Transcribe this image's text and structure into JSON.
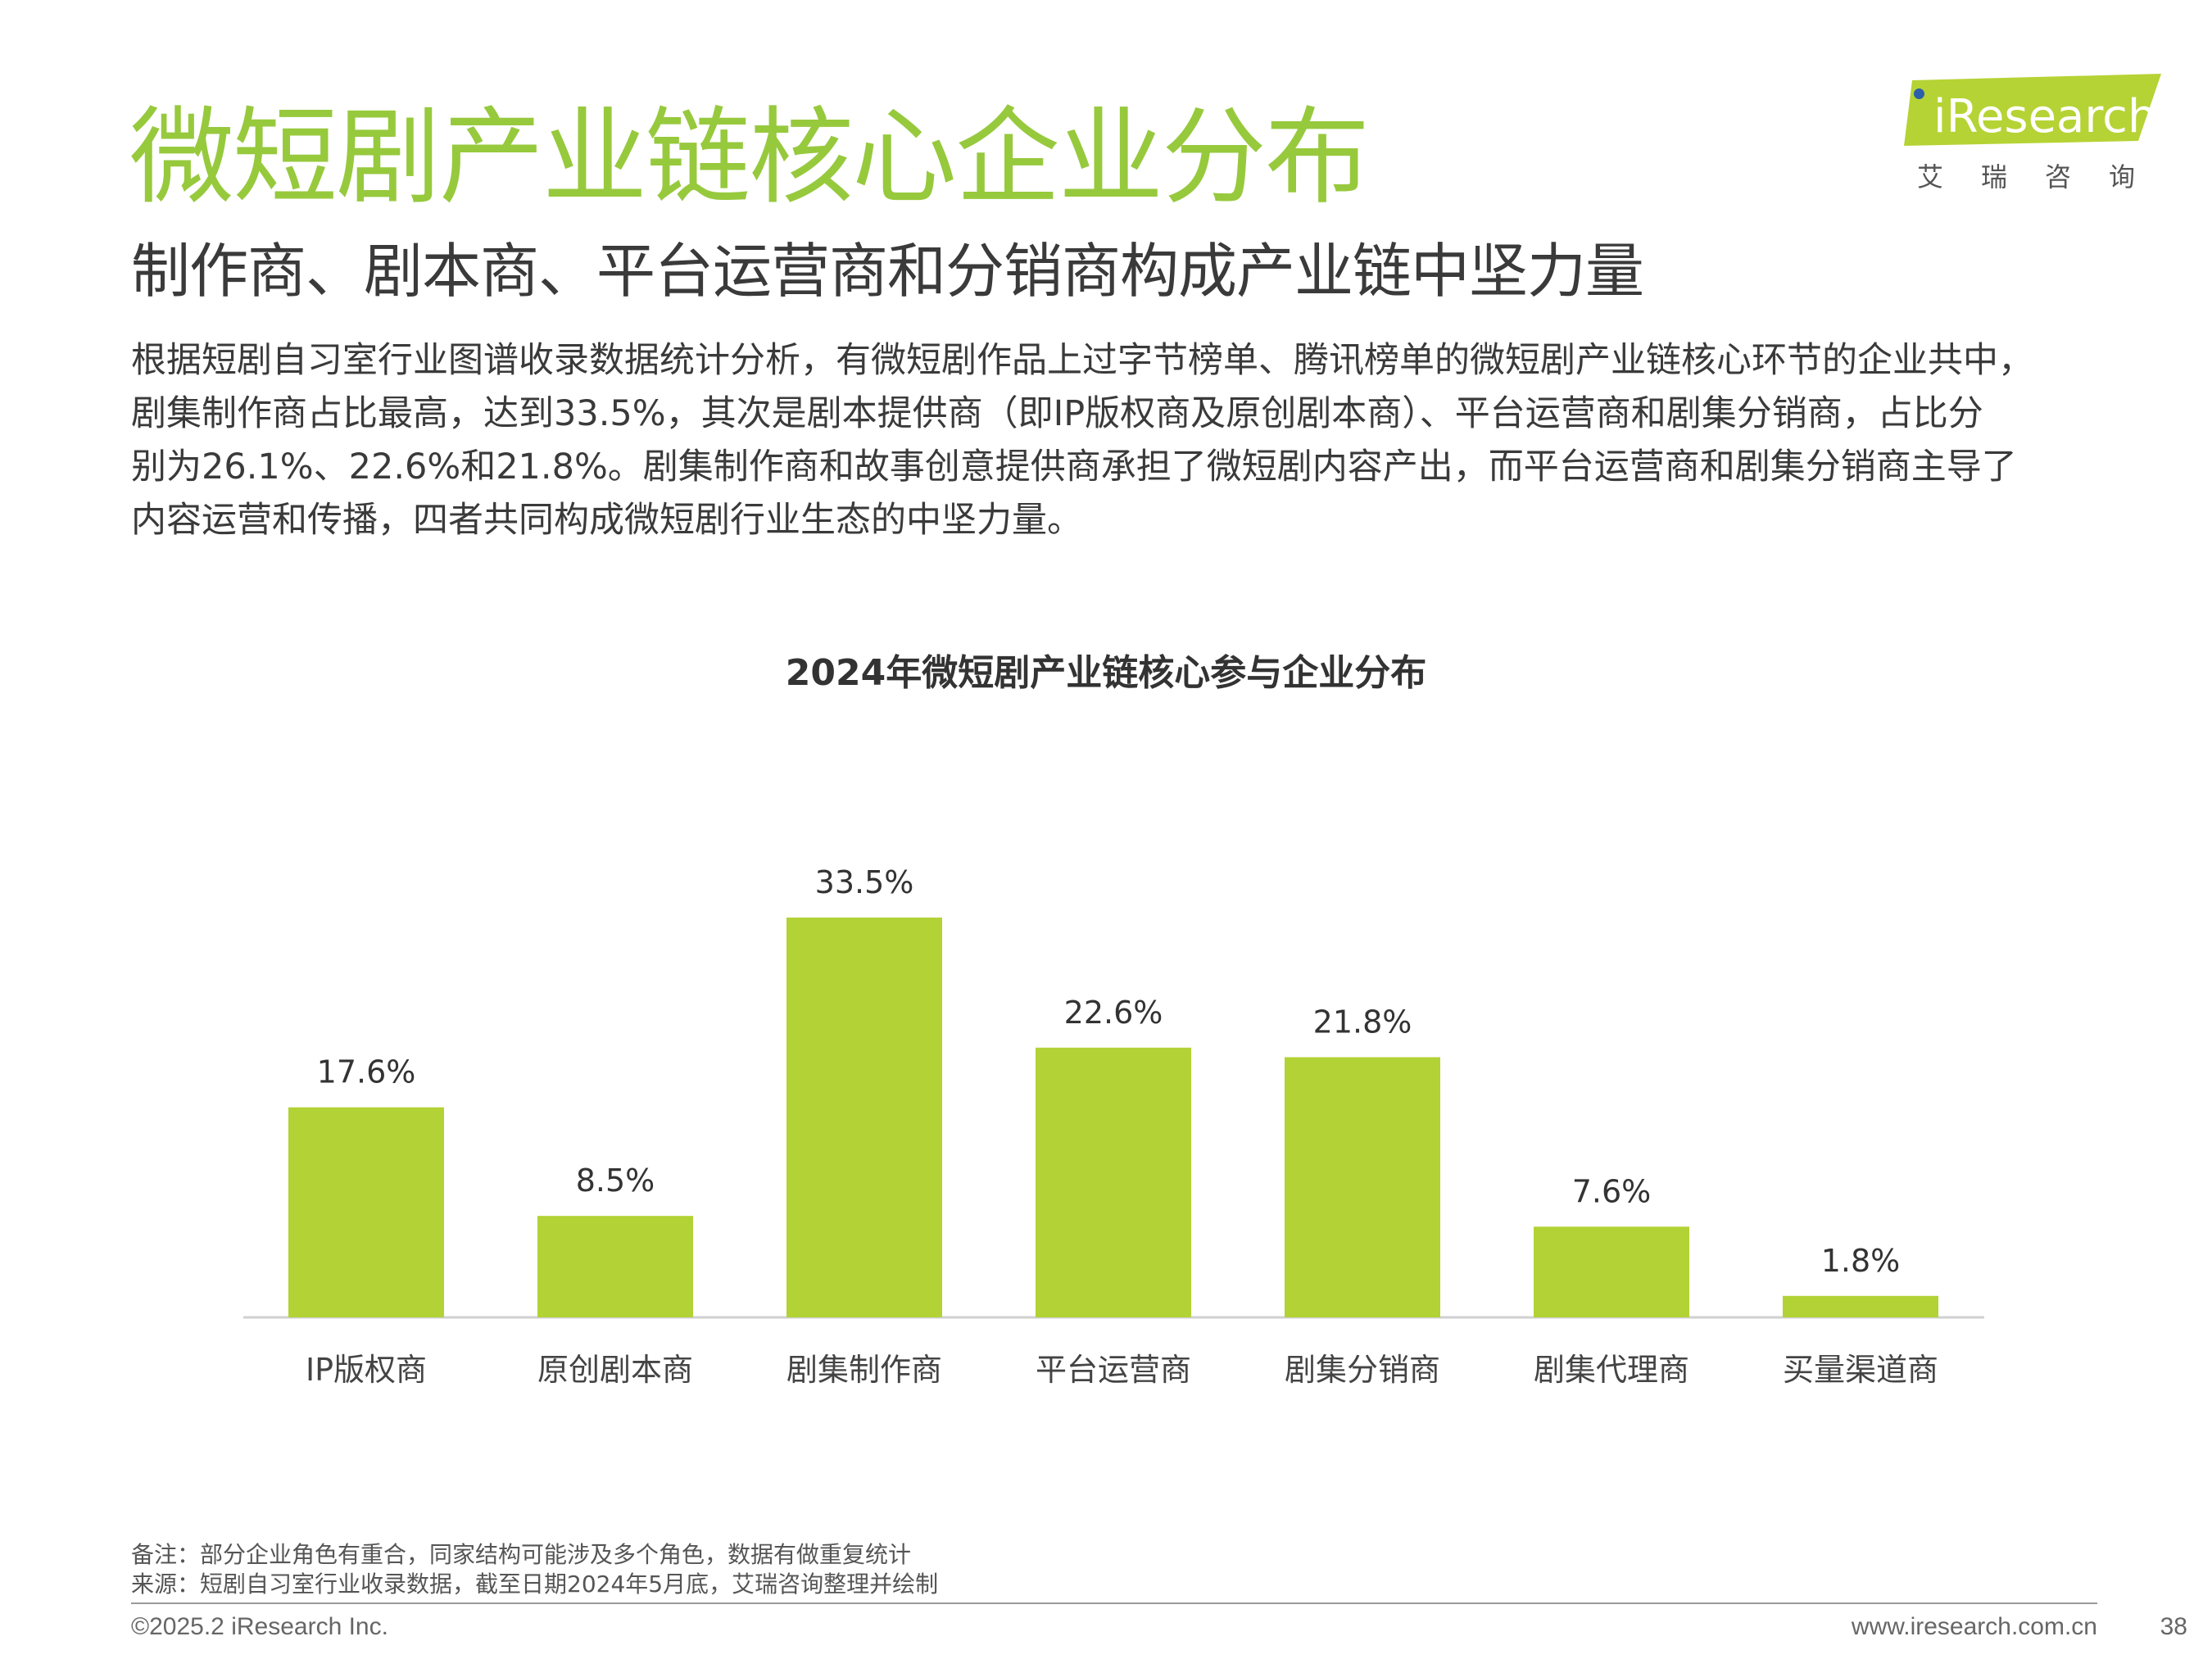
{
  "header": {
    "title": "微短剧产业链核心企业分布",
    "subtitle": "制作商、剧本商、平台运营商和分销商构成产业链中坚力量",
    "body_lines": [
      "根据短剧自习室行业图谱收录数据统计分析，有微短剧作品上过字节榜单、腾讯榜单的微短剧产业链核心环节的企业共中，",
      "剧集制作商占比最高，达到33.5%，其次是剧本提供商（即IP版权商及原创剧本商）、平台运营商和剧集分销商，占比分",
      "别为26.1%、22.6%和21.8%。剧集制作商和故事创意提供商承担了微短剧内容产出，而平台运营商和剧集分销商主导了",
      "内容运营和传播，四者共同构成微短剧行业生态的中坚力量。"
    ]
  },
  "logo": {
    "word": "Research",
    "sub": "艾瑞咨询",
    "colors": {
      "bg": "#b5d334",
      "dot": "#2c5fa8"
    }
  },
  "chart_data": {
    "type": "bar",
    "title": "2024年微短剧产业链核心参与企业分布",
    "categories": [
      "IP版权商",
      "原创剧本商",
      "剧集制作商",
      "平台运营商",
      "剧集分销商",
      "剧集代理商",
      "买量渠道商"
    ],
    "values": [
      17.6,
      8.5,
      33.5,
      22.6,
      21.8,
      7.6,
      1.8
    ],
    "value_labels": [
      "17.6%",
      "8.5%",
      "33.5%",
      "22.6%",
      "21.8%",
      "7.6%",
      "1.8%"
    ],
    "unit": "%",
    "ylim": [
      0,
      33.5
    ],
    "grid": false,
    "legend": "none",
    "bar_color": "#b2d235",
    "axis_color": "#d0d0d0"
  },
  "notes": {
    "note": "备注：部分企业角色有重合，同家结构可能涉及多个角色，数据有做重复统计",
    "source": "来源：短剧自习室行业收录数据，截至日期2024年5月底，艾瑞咨询整理并绘制"
  },
  "footer": {
    "copyright": "©2025.2 iResearch Inc.",
    "website": "www.iresearch.com.cn",
    "page": "38"
  }
}
